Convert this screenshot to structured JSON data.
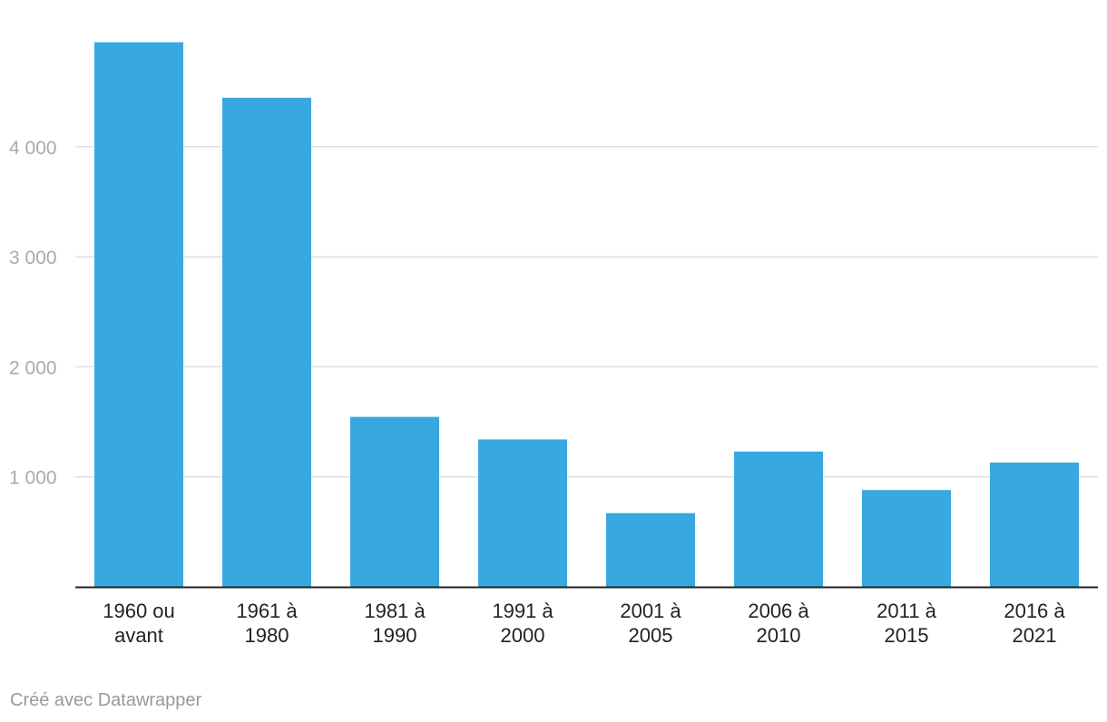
{
  "colors": {
    "bar": "#38a8e0",
    "grid": "#e0e0e0",
    "axis": "#222222",
    "tick_text": "#aaaaaa",
    "category_text": "#222222",
    "credit_text": "#999999"
  },
  "credit": "Créé avec Datawrapper",
  "chart_data": {
    "type": "bar",
    "title": "",
    "xlabel": "",
    "ylabel": "",
    "categories": [
      "1960 ou avant",
      "1961 à 1980",
      "1981 à 1990",
      "1991 à 2000",
      "2001 à 2005",
      "2006 à 2010",
      "2011 à 2015",
      "2016 à 2021"
    ],
    "category_lines": [
      [
        "1960 ou",
        "avant"
      ],
      [
        "1961 à",
        "1980"
      ],
      [
        "1981 à",
        "1990"
      ],
      [
        "1991 à",
        "2000"
      ],
      [
        "2001 à",
        "2005"
      ],
      [
        "2006 à",
        "2010"
      ],
      [
        "2011 à",
        "2015"
      ],
      [
        "2016 à",
        "2021"
      ]
    ],
    "values": [
      4950,
      4445,
      1545,
      1340,
      670,
      1230,
      880,
      1130
    ],
    "ylim": [
      0,
      5000
    ],
    "yticks": [
      1000,
      2000,
      3000,
      4000
    ],
    "ytick_labels": [
      "1 000",
      "2 000",
      "3 000",
      "4 000"
    ],
    "grid": true,
    "legend": "none"
  }
}
